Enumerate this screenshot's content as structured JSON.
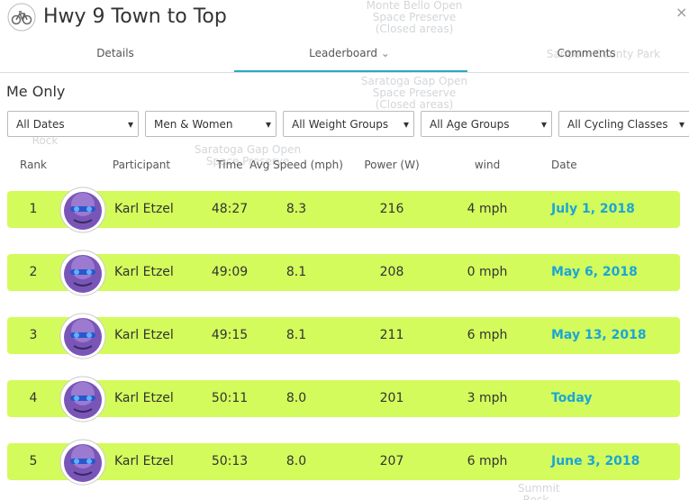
{
  "map_labels": [
    "Monte Bello Open Space Preserve (Closed areas)",
    "Sanborn County Park",
    "Saratoga Gap Open Space Preserve (Closed areas)",
    "Saratoga Gap Open Space Preserve",
    "Rock",
    "Summit Rock"
  ],
  "header": {
    "title": "Hwy 9 Town to Top",
    "close": "×"
  },
  "tabs": [
    "Details",
    "Leaderboard",
    "Comments"
  ],
  "filter_label": "Me Only",
  "dropdowns": [
    "All Dates",
    "Men & Women",
    "All Weight Groups",
    "All Age Groups",
    "All Cycling Classes"
  ],
  "table": {
    "columns": [
      "Rank",
      "Participant",
      "Time",
      "Avg Speed (mph)",
      "Power (W)",
      "wind",
      "Date"
    ],
    "rows": [
      [
        "1",
        "Karl Etzel",
        "48:27",
        "8.3",
        "216",
        "4 mph",
        "July 1, 2018"
      ],
      [
        "2",
        "Karl Etzel",
        "49:09",
        "8.1",
        "208",
        "0 mph",
        "May 6, 2018"
      ],
      [
        "3",
        "Karl Etzel",
        "49:15",
        "8.1",
        "211",
        "6 mph",
        "May 13, 2018"
      ],
      [
        "4",
        "Karl Etzel",
        "50:11",
        "8.0",
        "201",
        "3 mph",
        "Today"
      ],
      [
        "5",
        "Karl Etzel",
        "50:13",
        "8.0",
        "207",
        "6 mph",
        "June 3, 2018"
      ]
    ]
  }
}
